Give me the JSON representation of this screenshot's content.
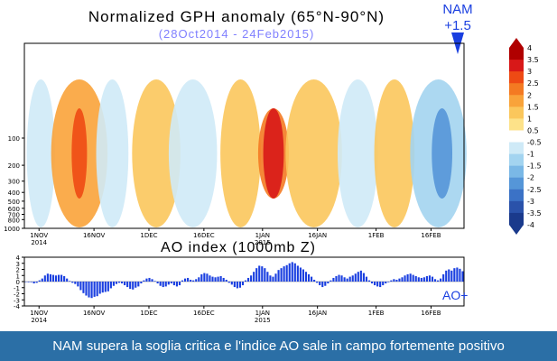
{
  "chart_data": [
    {
      "type": "heatmap",
      "title": "Normalized GPH anomaly (65°N-90°N)",
      "subtitle": "(28Oct2014 - 24Feb2015)",
      "annotation": {
        "label": "NAM",
        "value": "+1.5"
      },
      "y_axis": {
        "ticks": [
          "1000",
          "800",
          "700",
          "600",
          "500",
          "400",
          "300",
          "200",
          "100"
        ],
        "scale": "log pressure (hPa)"
      },
      "x_axis": {
        "ticks": [
          "1NOV\n2014",
          "16NOV",
          "1DEC",
          "16DEC",
          "1JAN\n2015",
          "16JAN",
          "1FEB",
          "16FEB"
        ]
      },
      "colorbar": {
        "ticks": [
          "4",
          "3.5",
          "3",
          "2.5",
          "2",
          "1.5",
          "1",
          "0.5",
          "-0.5",
          "-1",
          "-1.5",
          "-2",
          "-2.5",
          "-3",
          "-3.5",
          "-4"
        ],
        "colors": [
          "#b00000",
          "#d81818",
          "#ee4a14",
          "#f47a22",
          "#f9a33a",
          "#fbc75c",
          "#fde289",
          "#ffffff",
          "#cfeaf7",
          "#a3d4f0",
          "#7ab8e6",
          "#5596d8",
          "#3b72c6",
          "#2a52aa",
          "#1a3a8c"
        ]
      },
      "regions": [
        {
          "start": 1,
          "end": 8,
          "level": -1
        },
        {
          "start": 8,
          "end": 22,
          "level": 1.5
        },
        {
          "start": 12,
          "end": 18,
          "level": 2.5
        },
        {
          "start": 20,
          "end": 28,
          "level": -0.7
        },
        {
          "start": 30,
          "end": 42,
          "level": 1.0
        },
        {
          "start": 40,
          "end": 52,
          "level": -0.7
        },
        {
          "start": 54,
          "end": 64,
          "level": 1.0
        },
        {
          "start": 62,
          "end": 74,
          "level": 2.0
        },
        {
          "start": 64,
          "end": 72,
          "level": 3.0
        },
        {
          "start": 72,
          "end": 86,
          "level": 1.2
        },
        {
          "start": 86,
          "end": 96,
          "level": -0.8
        },
        {
          "start": 96,
          "end": 106,
          "level": 1.0
        },
        {
          "start": 106,
          "end": 120,
          "level": -1.5
        },
        {
          "start": 110,
          "end": 118,
          "level": -2.3
        }
      ]
    },
    {
      "type": "bar",
      "title": "AO index (1000mb Z)",
      "ylim": [
        -4,
        4
      ],
      "yticks": [
        4,
        3,
        2,
        1,
        0,
        -1,
        -2,
        -3,
        -4
      ],
      "x_axis": {
        "ticks": [
          "1NOV\n2014",
          "16NOV",
          "1DEC",
          "16DEC",
          "1JAN\n2015",
          "16JAN",
          "1FEB",
          "16FEB"
        ]
      },
      "end_label": "AO+",
      "values": [
        0,
        -0.1,
        -0.1,
        -0.3,
        -0.2,
        0.2,
        0.5,
        1.0,
        1.3,
        1.2,
        1.1,
        1.0,
        1.1,
        1.1,
        0.9,
        0.5,
        0.1,
        -0.2,
        -0.4,
        -0.8,
        -1.4,
        -1.9,
        -2.3,
        -2.6,
        -2.7,
        -2.5,
        -2.4,
        -2.0,
        -1.8,
        -1.7,
        -1.6,
        -1.1,
        -0.7,
        -0.4,
        -0.2,
        -0.3,
        -0.6,
        -0.9,
        -1.2,
        -1.3,
        -1.0,
        -0.8,
        -0.3,
        0.2,
        0.5,
        0.6,
        0.4,
        0.1,
        -0.3,
        -0.7,
        -0.9,
        -0.8,
        -0.5,
        -0.3,
        -0.6,
        -0.8,
        -0.6,
        0.2,
        0.5,
        0.6,
        0.3,
        0.2,
        0.4,
        0.7,
        1.2,
        1.4,
        1.3,
        1.0,
        0.8,
        0.7,
        0.8,
        0.9,
        0.6,
        0.3,
        -0.2,
        -0.5,
        -0.9,
        -1.1,
        -1.0,
        -0.6,
        0.2,
        0.6,
        1.0,
        1.6,
        2.2,
        2.6,
        2.5,
        2.2,
        1.6,
        1.0,
        0.8,
        1.3,
        1.9,
        2.2,
        2.5,
        2.7,
        3.0,
        3.2,
        3.0,
        2.6,
        2.3,
        2.0,
        1.6,
        1.2,
        0.8,
        0.3,
        -0.2,
        -0.6,
        -0.9,
        -0.7,
        -0.3,
        0.2,
        0.6,
        0.9,
        1.1,
        1.0,
        0.7,
        0.5,
        0.8,
        1.0,
        1.3,
        1.6,
        1.8,
        1.4,
        0.8,
        0.2,
        -0.3,
        -0.6,
        -0.8,
        -0.9,
        -0.6,
        -0.3,
        -0.1,
        0.2,
        0.4,
        0.3,
        0.5,
        0.7,
        1.0,
        1.2,
        1.3,
        1.1,
        0.9,
        0.7,
        0.6,
        0.7,
        0.9,
        1.0,
        0.8,
        0.4,
        0.2,
        0.5,
        1.2,
        1.8,
        2.0,
        1.8,
        2.2,
        2.3,
        2.1,
        1.7
      ]
    }
  ],
  "footer": {
    "text": "NAM supera la soglia critica e l'indice AO sale in campo fortemente positivo"
  }
}
